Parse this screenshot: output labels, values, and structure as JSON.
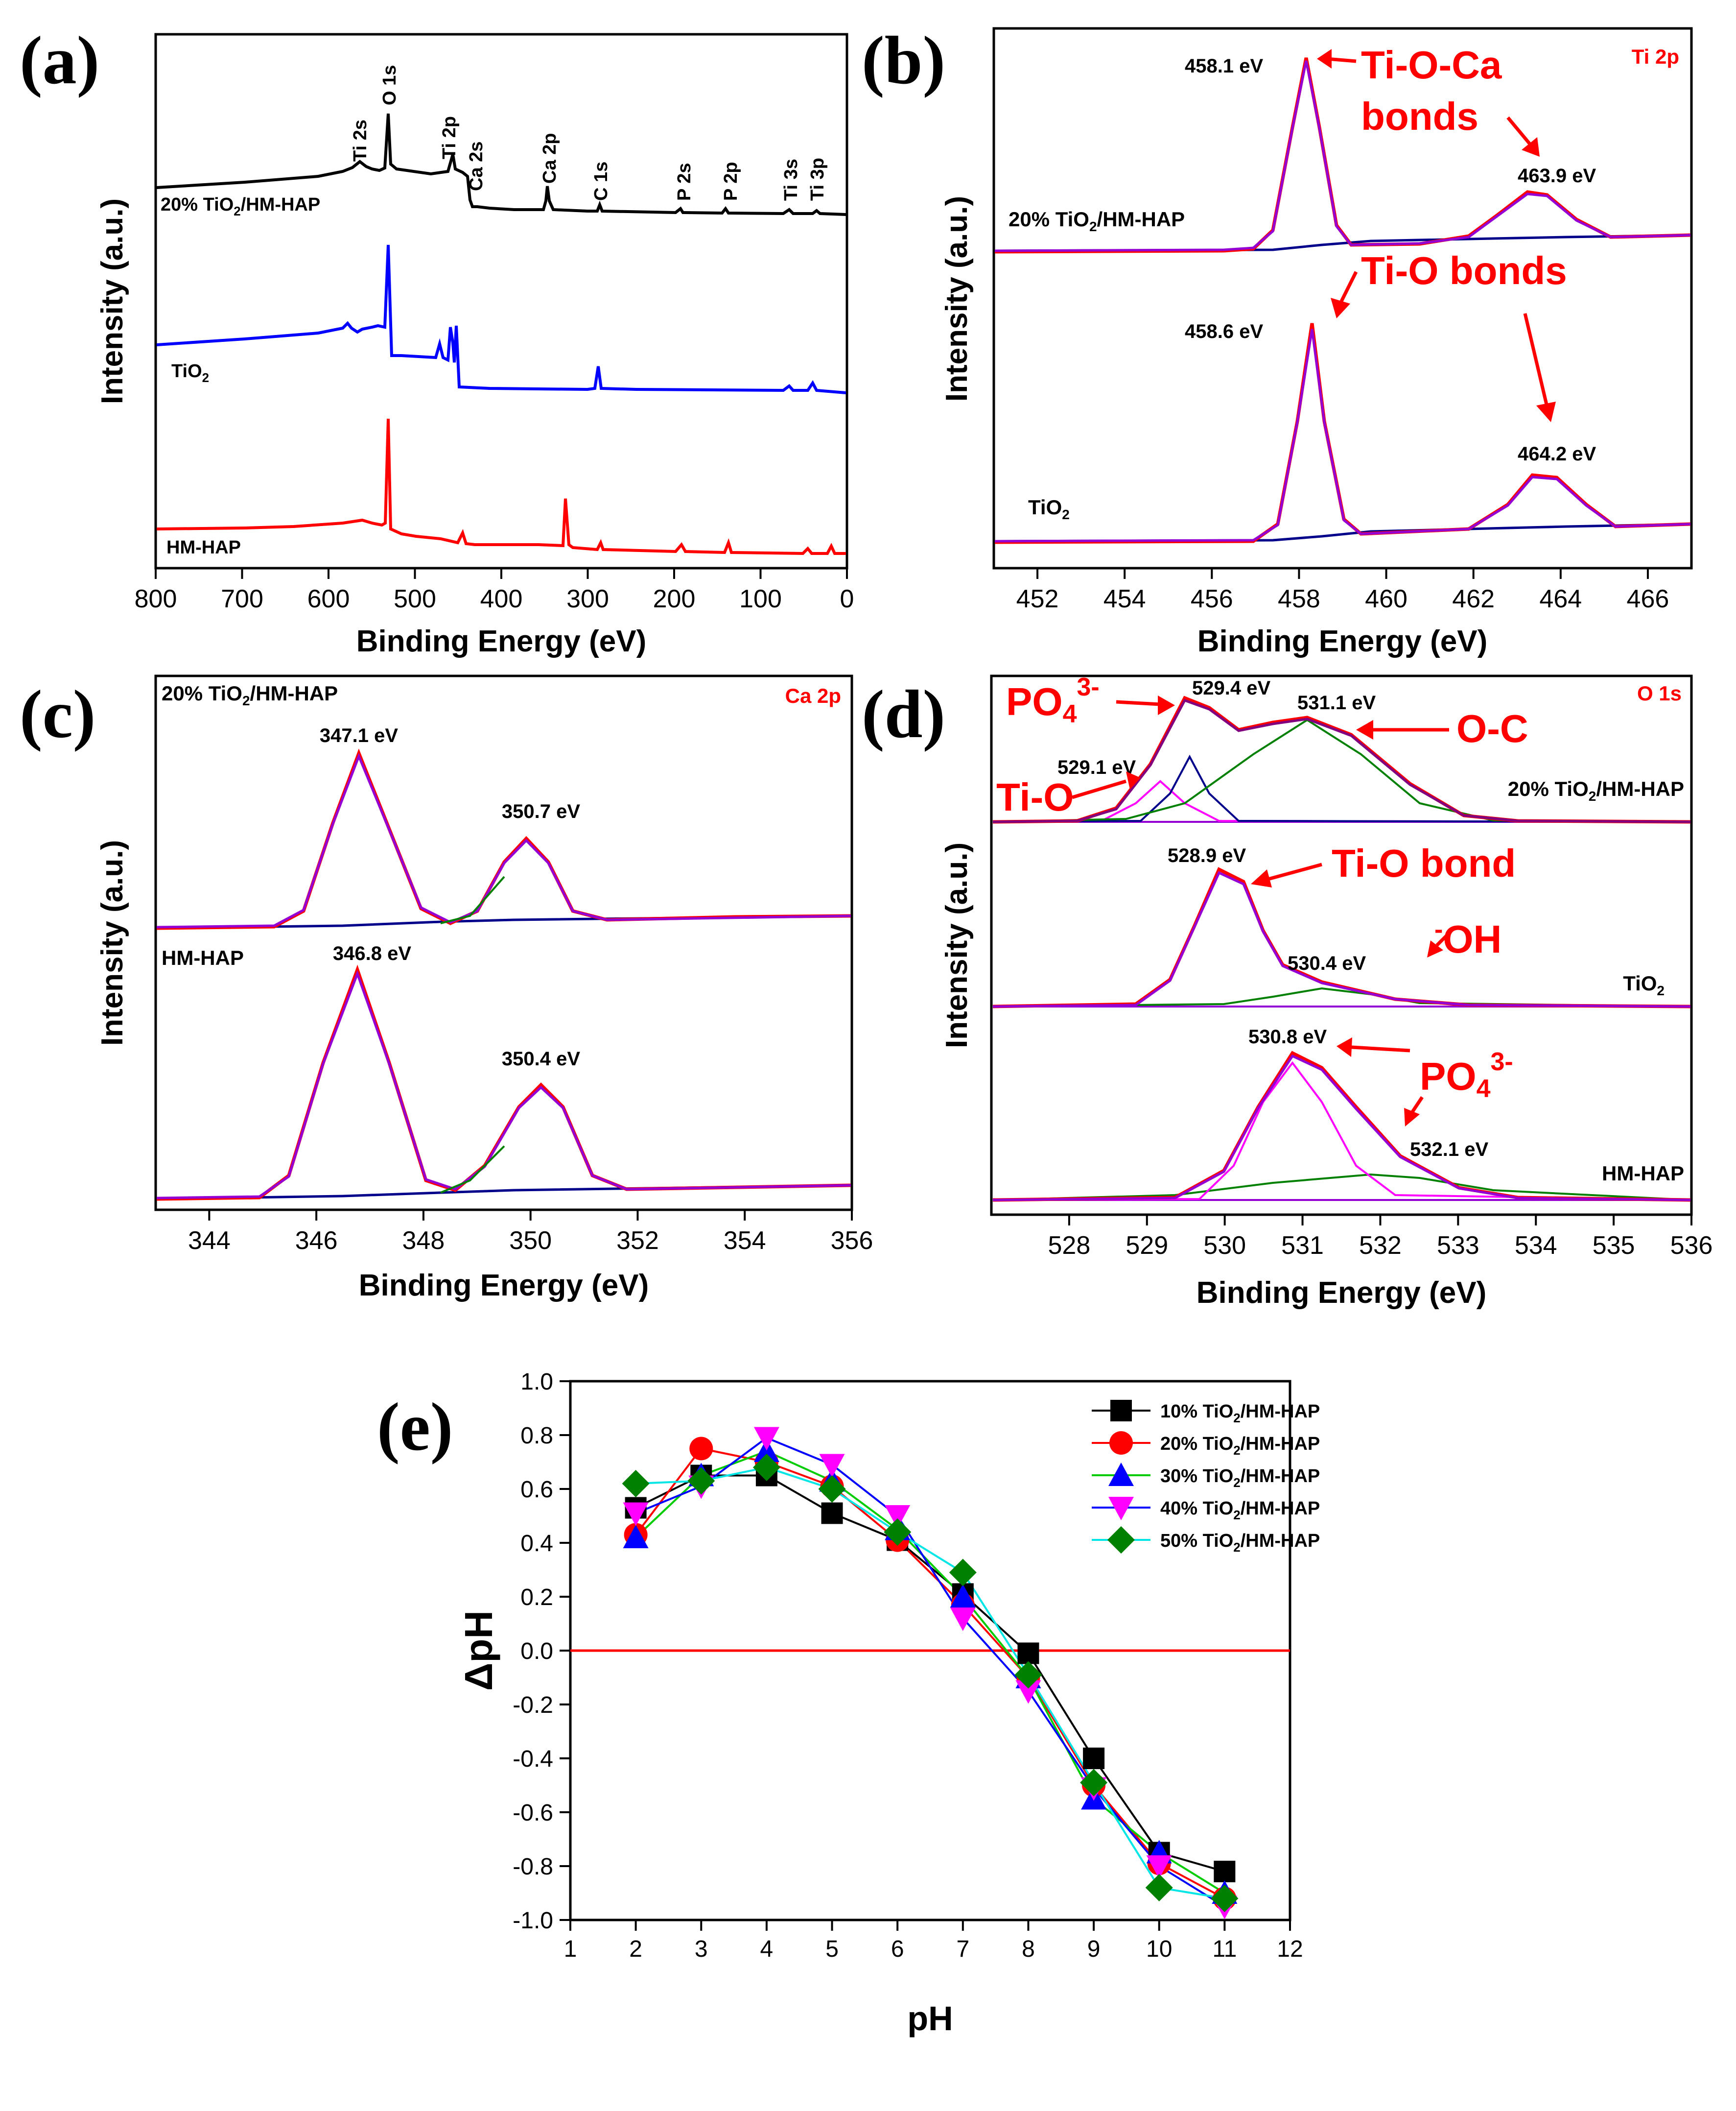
{
  "chart_data": [
    {
      "panel": "(a)",
      "type": "line",
      "xlabel": "Binding Energy (eV)",
      "ylabel": "Intensity (a.u.)",
      "xlim": [
        800,
        0
      ],
      "xticks": [
        "800",
        "700",
        "600",
        "500",
        "400",
        "300",
        "200",
        "100",
        "0"
      ],
      "series": [
        {
          "name": "20% TiO2/HM-HAP",
          "label_main": "20% TiO",
          "label_sub": "2",
          "label_tail": "/HM-HAP",
          "color": "#000000"
        },
        {
          "name": "TiO2",
          "label_main": "TiO",
          "label_sub": "2",
          "label_tail": "",
          "color": "#0000ff"
        },
        {
          "name": "HM-HAP",
          "label_main": "HM-HAP",
          "label_sub": "",
          "label_tail": "",
          "color": "#ff0000"
        }
      ],
      "peak_labels": [
        "Ti 2s",
        "O 1s",
        "Ti 2p",
        "Ca 2s",
        "Ca 2p",
        "C 1s",
        "P 2s",
        "P 2p",
        "Ti 3s",
        "Ti 3p"
      ]
    },
    {
      "panel": "(b)",
      "type": "line",
      "tag": "Ti 2p",
      "xlabel": "Binding Energy (eV)",
      "ylabel": "Intensity (a.u.)",
      "xlim": [
        451,
        467
      ],
      "xticks": [
        "452",
        "454",
        "456",
        "458",
        "460",
        "462",
        "464",
        "466"
      ],
      "series_labels": [
        {
          "main": "20% TiO",
          "sub": "2",
          "tail": "/HM-HAP"
        },
        {
          "main": "TiO",
          "sub": "2",
          "tail": ""
        }
      ],
      "peaks": [
        "458.1 eV",
        "463.9 eV",
        "458.6 eV",
        "464.2 eV"
      ],
      "annotations": [
        "Ti-O-Ca",
        "bonds",
        "Ti-O bonds"
      ]
    },
    {
      "panel": "(c)",
      "type": "line",
      "tag": "Ca 2p",
      "xlabel": "Binding Energy (eV)",
      "ylabel": "Intensity (a.u.)",
      "xlim": [
        343,
        356
      ],
      "xticks": [
        "344",
        "346",
        "348",
        "350",
        "352",
        "354",
        "356"
      ],
      "series_labels": [
        {
          "main": "20% TiO",
          "sub": "2",
          "tail": "/HM-HAP"
        },
        {
          "main": "HM-HAP",
          "sub": "",
          "tail": ""
        }
      ],
      "peaks": [
        "347.1 eV",
        "350.7 eV",
        "346.8 eV",
        "350.4 eV"
      ]
    },
    {
      "panel": "(d)",
      "type": "line",
      "tag": "O 1s",
      "xlabel": "Binding Energy (eV)",
      "ylabel": "Intensity (a.u.)",
      "xlim": [
        527,
        536
      ],
      "xticks": [
        "528",
        "529",
        "530",
        "531",
        "532",
        "533",
        "534",
        "535",
        "536"
      ],
      "series_labels": [
        {
          "main": "20% TiO",
          "sub": "2",
          "tail": "/HM-HAP"
        },
        {
          "main": "TiO",
          "sub": "2",
          "tail": ""
        },
        {
          "main": "HM-HAP",
          "sub": "",
          "tail": ""
        }
      ],
      "peaks": [
        "529.4 eV",
        "531.1 eV",
        "529.1 eV",
        "528.9 eV",
        "530.4 eV",
        "530.8 eV",
        "532.1 eV"
      ],
      "annotations": {
        "po4_1": "PO",
        "po4_sub": "4",
        "po4_sup": "3-",
        "oc": "O-C",
        "tio": "Ti-O",
        "tio_bond": "Ti-O bond",
        "oh_sup": "-",
        "oh": "OH",
        "po4_2": "PO"
      }
    },
    {
      "panel": "(e)",
      "type": "line",
      "xlabel": "pH",
      "ylabel": "ΔpH",
      "xlim": [
        1,
        12
      ],
      "ylim": [
        -1.0,
        1.0
      ],
      "xticks": [
        "1",
        "2",
        "3",
        "4",
        "5",
        "6",
        "7",
        "8",
        "9",
        "10",
        "11",
        "12"
      ],
      "yticks": [
        "-1.0",
        "-0.8",
        "-0.6",
        "-0.4",
        "-0.2",
        "0.0",
        "0.2",
        "0.4",
        "0.6",
        "0.8",
        "1.0"
      ],
      "x": [
        2,
        3,
        4,
        5,
        6,
        7,
        8,
        9,
        10,
        11
      ],
      "series": [
        {
          "name": "10% TiO2/HM-HAP",
          "label_main": "10% TiO",
          "label_sub": "2",
          "label_tail": "/HM-HAP",
          "marker": "square",
          "marker_color": "#000000",
          "line_color": "#000000",
          "values": [
            0.53,
            0.65,
            0.65,
            0.51,
            0.41,
            0.21,
            -0.01,
            -0.4,
            -0.75,
            -0.82
          ]
        },
        {
          "name": "20% TiO2/HM-HAP",
          "label_main": "20% TiO",
          "label_sub": "2",
          "label_tail": "/HM-HAP",
          "marker": "circle",
          "marker_color": "#ff0000",
          "line_color": "#ff0000",
          "values": [
            0.43,
            0.75,
            0.7,
            0.61,
            0.41,
            0.17,
            -0.1,
            -0.5,
            -0.79,
            -0.92
          ]
        },
        {
          "name": "30% TiO2/HM-HAP",
          "label_main": "30% TiO",
          "label_sub": "2",
          "label_tail": "/HM-HAP",
          "marker": "triangle-up",
          "marker_color": "#0000ff",
          "line_color": "#00cc00",
          "values": [
            0.42,
            0.65,
            0.74,
            0.63,
            0.45,
            0.2,
            -0.1,
            -0.55,
            -0.75,
            -0.9
          ]
        },
        {
          "name": "40% TiO2/HM-HAP",
          "label_main": "40% TiO",
          "label_sub": "2",
          "label_tail": "/HM-HAP",
          "marker": "triangle-down",
          "marker_color": "#ff00ff",
          "line_color": "#0000ff",
          "values": [
            0.51,
            0.61,
            0.79,
            0.69,
            0.5,
            0.12,
            -0.15,
            -0.51,
            -0.8,
            -0.95
          ]
        },
        {
          "name": "50% TiO2/HM-HAP",
          "label_main": "50% TiO",
          "label_sub": "2",
          "label_tail": "/HM-HAP",
          "marker": "diamond",
          "marker_color": "#008000",
          "line_color": "#00e5e5",
          "values": [
            0.62,
            0.63,
            0.68,
            0.6,
            0.44,
            0.29,
            -0.09,
            -0.49,
            -0.88,
            -0.92
          ]
        }
      ],
      "reference_line": {
        "y": 0.0,
        "color": "#ff0000"
      }
    }
  ]
}
